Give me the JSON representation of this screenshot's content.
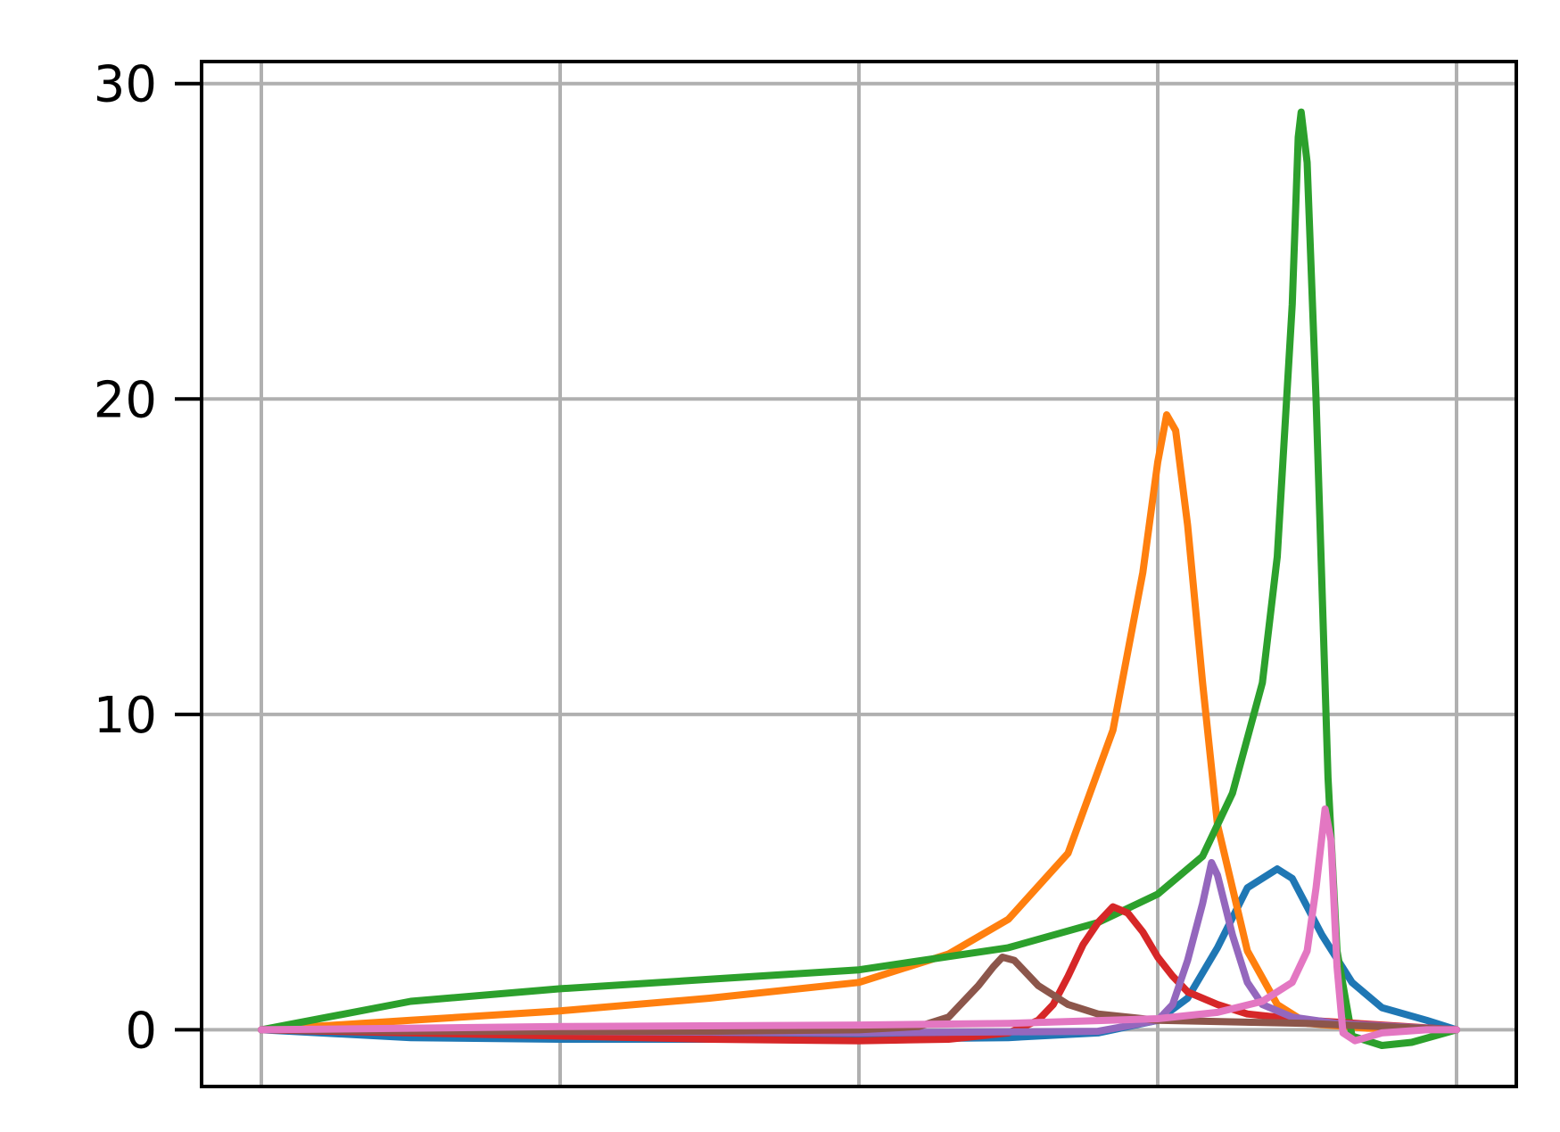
{
  "chart_data": {
    "type": "line",
    "title": "",
    "xlabel": "",
    "ylabel": "",
    "xlim": [
      -0.2,
      4.2
    ],
    "ylim": [
      -1.8,
      30.7
    ],
    "grid": true,
    "legend": "none",
    "x_ticks": [
      0,
      1,
      2,
      3,
      4
    ],
    "y_ticks": [
      {
        "value": 0,
        "label": "0"
      },
      {
        "value": 10,
        "label": "10"
      },
      {
        "value": 20,
        "label": "20"
      },
      {
        "value": 30,
        "label": "30"
      }
    ],
    "colors": {
      "grid": "#b0b0b0",
      "axes": "#000000"
    },
    "series": [
      {
        "color": "#1f77b4",
        "points": [
          [
            0,
            0
          ],
          [
            0.5,
            -0.25
          ],
          [
            1,
            -0.3
          ],
          [
            1.5,
            -0.3
          ],
          [
            2,
            -0.3
          ],
          [
            2.5,
            -0.25
          ],
          [
            2.8,
            -0.1
          ],
          [
            3.0,
            0.3
          ],
          [
            3.1,
            1
          ],
          [
            3.2,
            2.6
          ],
          [
            3.3,
            4.5
          ],
          [
            3.4,
            5.1
          ],
          [
            3.45,
            4.8
          ],
          [
            3.55,
            3
          ],
          [
            3.65,
            1.5
          ],
          [
            3.75,
            0.7
          ],
          [
            3.9,
            0.3
          ],
          [
            4,
            0
          ]
        ]
      },
      {
        "color": "#ff7f0e",
        "points": [
          [
            0,
            0
          ],
          [
            0.5,
            0.3
          ],
          [
            1,
            0.6
          ],
          [
            1.5,
            1
          ],
          [
            2,
            1.5
          ],
          [
            2.3,
            2.4
          ],
          [
            2.5,
            3.5
          ],
          [
            2.7,
            5.6
          ],
          [
            2.85,
            9.5
          ],
          [
            2.95,
            14.5
          ],
          [
            3.0,
            18
          ],
          [
            3.03,
            19.5
          ],
          [
            3.06,
            19
          ],
          [
            3.1,
            16
          ],
          [
            3.15,
            11
          ],
          [
            3.2,
            6.5
          ],
          [
            3.3,
            2.5
          ],
          [
            3.4,
            0.8
          ],
          [
            3.5,
            0.2
          ],
          [
            3.7,
            0.05
          ],
          [
            4,
            0
          ]
        ]
      },
      {
        "color": "#2ca02c",
        "points": [
          [
            0,
            0
          ],
          [
            0.5,
            0.9
          ],
          [
            1,
            1.3
          ],
          [
            1.5,
            1.6
          ],
          [
            2,
            1.9
          ],
          [
            2.5,
            2.6
          ],
          [
            2.8,
            3.4
          ],
          [
            3.0,
            4.3
          ],
          [
            3.15,
            5.5
          ],
          [
            3.25,
            7.5
          ],
          [
            3.35,
            11
          ],
          [
            3.4,
            15
          ],
          [
            3.45,
            23
          ],
          [
            3.47,
            28.3
          ],
          [
            3.48,
            29.1
          ],
          [
            3.5,
            27.5
          ],
          [
            3.53,
            20
          ],
          [
            3.57,
            8
          ],
          [
            3.6,
            2.5
          ],
          [
            3.65,
            -0.2
          ],
          [
            3.75,
            -0.5
          ],
          [
            3.85,
            -0.4
          ],
          [
            4,
            0
          ]
        ]
      },
      {
        "color": "#d62728",
        "points": [
          [
            0,
            0
          ],
          [
            0.5,
            -0.1
          ],
          [
            1,
            -0.2
          ],
          [
            1.5,
            -0.3
          ],
          [
            2,
            -0.35
          ],
          [
            2.3,
            -0.3
          ],
          [
            2.5,
            -0.1
          ],
          [
            2.6,
            0.3
          ],
          [
            2.65,
            0.8
          ],
          [
            2.7,
            1.7
          ],
          [
            2.75,
            2.7
          ],
          [
            2.8,
            3.4
          ],
          [
            2.85,
            3.9
          ],
          [
            2.9,
            3.7
          ],
          [
            2.95,
            3.1
          ],
          [
            3.0,
            2.3
          ],
          [
            3.05,
            1.7
          ],
          [
            3.1,
            1.2
          ],
          [
            3.2,
            0.8
          ],
          [
            3.3,
            0.5
          ],
          [
            3.5,
            0.3
          ],
          [
            4,
            0
          ]
        ]
      },
      {
        "color": "#9467bd",
        "points": [
          [
            0,
            0
          ],
          [
            1,
            -0.05
          ],
          [
            2,
            -0.1
          ],
          [
            2.8,
            -0.05
          ],
          [
            3.0,
            0.3
          ],
          [
            3.05,
            0.8
          ],
          [
            3.1,
            2.2
          ],
          [
            3.15,
            4
          ],
          [
            3.18,
            5.3
          ],
          [
            3.2,
            4.9
          ],
          [
            3.25,
            3
          ],
          [
            3.3,
            1.5
          ],
          [
            3.35,
            0.8
          ],
          [
            3.45,
            0.4
          ],
          [
            3.6,
            0.2
          ],
          [
            4,
            0
          ]
        ]
      },
      {
        "color": "#8c564b",
        "points": [
          [
            0,
            0
          ],
          [
            0.5,
            -0.05
          ],
          [
            1,
            -0.05
          ],
          [
            1.5,
            -0.05
          ],
          [
            2,
            0
          ],
          [
            2.2,
            0.1
          ],
          [
            2.3,
            0.4
          ],
          [
            2.35,
            0.9
          ],
          [
            2.4,
            1.4
          ],
          [
            2.45,
            2.0
          ],
          [
            2.48,
            2.3
          ],
          [
            2.52,
            2.2
          ],
          [
            2.6,
            1.4
          ],
          [
            2.7,
            0.8
          ],
          [
            2.8,
            0.5
          ],
          [
            3,
            0.3
          ],
          [
            3.5,
            0.2
          ],
          [
            4,
            0
          ]
        ]
      },
      {
        "color": "#e377c2",
        "points": [
          [
            0,
            0
          ],
          [
            1,
            0.1
          ],
          [
            2,
            0.15
          ],
          [
            2.5,
            0.2
          ],
          [
            3.0,
            0.35
          ],
          [
            3.2,
            0.55
          ],
          [
            3.35,
            0.9
          ],
          [
            3.45,
            1.5
          ],
          [
            3.5,
            2.5
          ],
          [
            3.53,
            4.5
          ],
          [
            3.56,
            7.0
          ],
          [
            3.58,
            6.0
          ],
          [
            3.6,
            2.0
          ],
          [
            3.62,
            -0.1
          ],
          [
            3.66,
            -0.35
          ],
          [
            3.75,
            -0.1
          ],
          [
            3.9,
            0
          ],
          [
            4,
            0
          ]
        ]
      }
    ]
  }
}
